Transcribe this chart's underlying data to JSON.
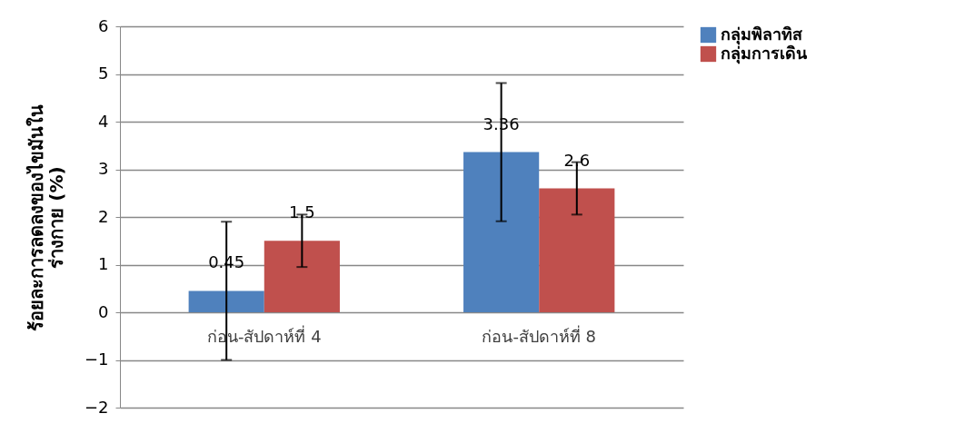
{
  "chart_data": {
    "type": "bar",
    "ylabel": "ร้อยละการลดลงของไขมันใน\nร่างกาย (%)",
    "categories": [
      "ก่อน-สัปดาห์ที่ 4",
      "ก่อน-สัปดาห์ที่ 8"
    ],
    "series": [
      {
        "name": "กลุ่มพิลาทิส",
        "color": "#4f81bd",
        "values": [
          0.45,
          3.36
        ],
        "errors": [
          1.45,
          1.45
        ]
      },
      {
        "name": "กลุ่มการเดิน",
        "color": "#c0504d",
        "values": [
          1.5,
          2.6
        ],
        "errors": [
          0.55,
          0.55
        ]
      }
    ],
    "ylim": [
      -2,
      6
    ],
    "yticks": [
      -2,
      -1,
      0,
      1,
      2,
      3,
      4,
      5,
      6
    ],
    "grid": "y",
    "legend": "right",
    "data_labels": true
  }
}
